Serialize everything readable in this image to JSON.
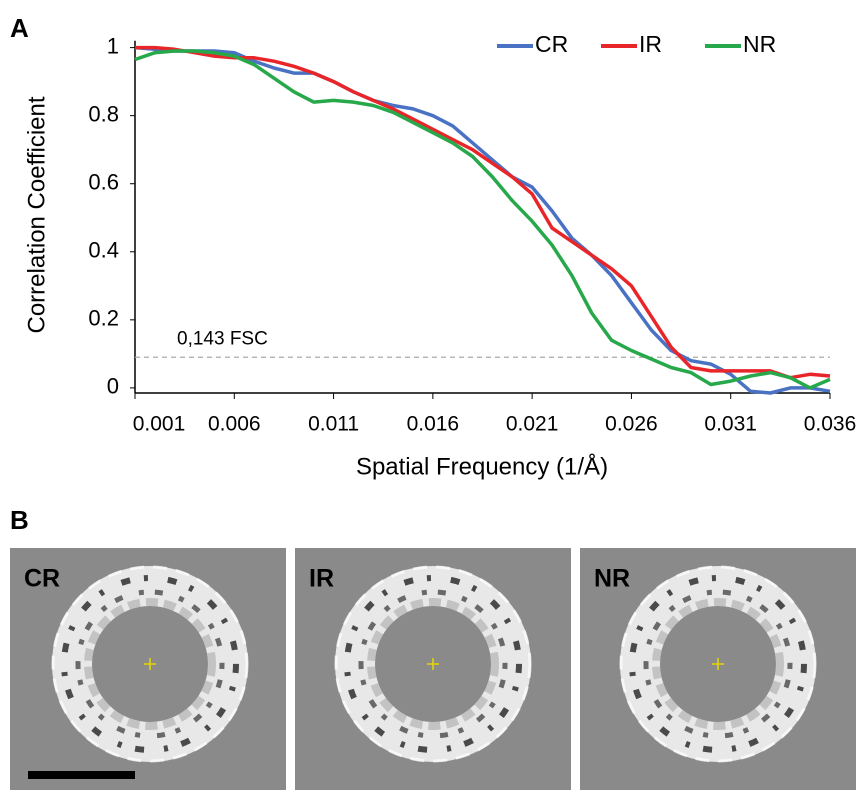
{
  "chart_data": {
    "type": "line",
    "panel_label": "A",
    "x_label": "Spatial Frequency (1/Å)",
    "y_label": "Correlation Coefficient",
    "x": [
      0.001,
      0.002,
      0.003,
      0.004,
      0.005,
      0.006,
      0.007,
      0.008,
      0.009,
      0.01,
      0.011,
      0.012,
      0.013,
      0.014,
      0.015,
      0.016,
      0.017,
      0.018,
      0.019,
      0.02,
      0.021,
      0.022,
      0.023,
      0.024,
      0.025,
      0.026,
      0.027,
      0.028,
      0.029,
      0.03,
      0.031,
      0.032,
      0.033,
      0.034,
      0.035,
      0.036
    ],
    "series": [
      {
        "name": "CR",
        "color": "#4a72c4",
        "values": [
          1.0,
          0.995,
          0.99,
          0.99,
          0.99,
          0.985,
          0.96,
          0.94,
          0.925,
          0.925,
          0.9,
          0.87,
          0.845,
          0.83,
          0.82,
          0.8,
          0.77,
          0.72,
          0.67,
          0.62,
          0.59,
          0.52,
          0.44,
          0.39,
          0.33,
          0.25,
          0.17,
          0.11,
          0.08,
          0.07,
          0.04,
          -0.01,
          -0.015,
          0.0,
          0.0,
          -0.01
        ]
      },
      {
        "name": "IR",
        "color": "#e8262a",
        "values": [
          1.0,
          1.0,
          0.995,
          0.985,
          0.975,
          0.97,
          0.97,
          0.96,
          0.945,
          0.925,
          0.9,
          0.87,
          0.845,
          0.82,
          0.79,
          0.76,
          0.73,
          0.7,
          0.66,
          0.62,
          0.57,
          0.47,
          0.43,
          0.39,
          0.35,
          0.3,
          0.21,
          0.12,
          0.06,
          0.05,
          0.05,
          0.05,
          0.05,
          0.03,
          0.04,
          0.035
        ]
      },
      {
        "name": "NR",
        "color": "#27a84a",
        "values": [
          0.965,
          0.985,
          0.99,
          0.99,
          0.985,
          0.975,
          0.95,
          0.91,
          0.87,
          0.84,
          0.845,
          0.84,
          0.83,
          0.81,
          0.78,
          0.75,
          0.72,
          0.68,
          0.62,
          0.55,
          0.49,
          0.42,
          0.33,
          0.22,
          0.14,
          0.11,
          0.085,
          0.06,
          0.045,
          0.01,
          0.02,
          0.035,
          0.045,
          0.03,
          0.0,
          0.025
        ]
      }
    ],
    "xlim": [
      0.001,
      0.036
    ],
    "xticks": [
      0.001,
      0.006,
      0.011,
      0.016,
      0.021,
      0.026,
      0.031,
      0.036
    ],
    "ylim": [
      -0.015,
      1.02
    ],
    "yticks": [
      0,
      0.2,
      0.4,
      0.6,
      0.8,
      1
    ],
    "reference_line": {
      "value": 0.09,
      "label": "0,143 FSC"
    },
    "legend": "upper right"
  },
  "panel_b": {
    "label": "B",
    "images": [
      {
        "label": "CR"
      },
      {
        "label": "IR"
      },
      {
        "label": "NR"
      }
    ]
  }
}
